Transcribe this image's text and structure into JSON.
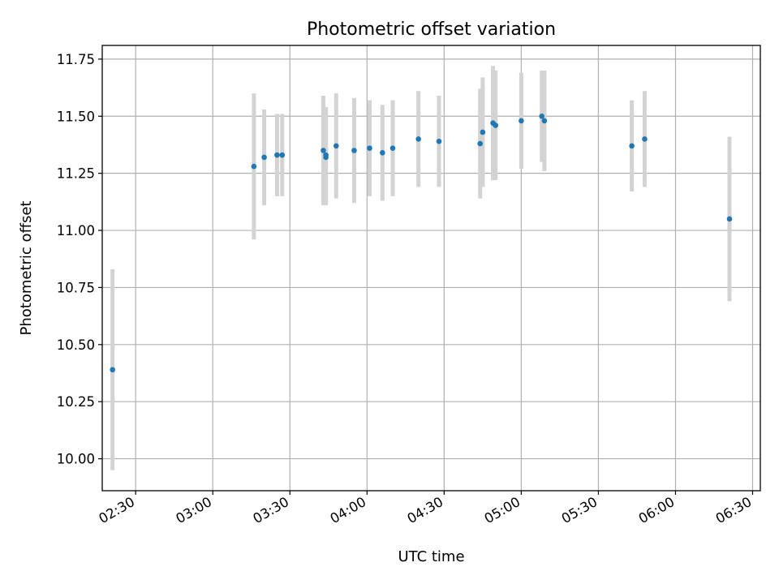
{
  "chart_data": {
    "type": "scatter",
    "title": "Photometric offset variation",
    "xlabel": "UTC time",
    "ylabel": "Photometric offset",
    "x_ticks": [
      "02:30",
      "03:00",
      "03:30",
      "04:00",
      "04:30",
      "05:00",
      "05:30",
      "06:00",
      "06:30"
    ],
    "y_ticks": [
      "10.00",
      "10.25",
      "10.50",
      "10.75",
      "11.00",
      "11.25",
      "11.50",
      "11.75"
    ],
    "xlim": [
      "02:17",
      "06:33"
    ],
    "ylim": [
      9.86,
      11.81
    ],
    "grid": true,
    "point_color": "#1f77b4",
    "errorbar_color": "#d3d3d3",
    "series": [
      {
        "points": [
          {
            "x": "02:21",
            "y": 10.39,
            "err": 0.44
          },
          {
            "x": "03:16",
            "y": 11.28,
            "err": 0.32
          },
          {
            "x": "03:20",
            "y": 11.32,
            "err": 0.21
          },
          {
            "x": "03:25",
            "y": 11.33,
            "err": 0.18
          },
          {
            "x": "03:27",
            "y": 11.33,
            "err": 0.18
          },
          {
            "x": "03:43",
            "y": 11.35,
            "err": 0.24
          },
          {
            "x": "03:44",
            "y": 11.32,
            "err": 0.21
          },
          {
            "x": "03:44",
            "y": 11.33,
            "err": 0.21
          },
          {
            "x": "03:48",
            "y": 11.37,
            "err": 0.23
          },
          {
            "x": "03:55",
            "y": 11.35,
            "err": 0.23
          },
          {
            "x": "04:01",
            "y": 11.36,
            "err": 0.21
          },
          {
            "x": "04:06",
            "y": 11.34,
            "err": 0.21
          },
          {
            "x": "04:10",
            "y": 11.36,
            "err": 0.21
          },
          {
            "x": "04:20",
            "y": 11.4,
            "err": 0.21
          },
          {
            "x": "04:28",
            "y": 11.39,
            "err": 0.2
          },
          {
            "x": "04:44",
            "y": 11.38,
            "err": 0.24
          },
          {
            "x": "04:45",
            "y": 11.43,
            "err": 0.24
          },
          {
            "x": "04:49",
            "y": 11.47,
            "err": 0.25
          },
          {
            "x": "04:50",
            "y": 11.46,
            "err": 0.24
          },
          {
            "x": "05:00",
            "y": 11.48,
            "err": 0.21
          },
          {
            "x": "05:08",
            "y": 11.5,
            "err": 0.2
          },
          {
            "x": "05:09",
            "y": 11.48,
            "err": 0.22
          },
          {
            "x": "05:43",
            "y": 11.37,
            "err": 0.2
          },
          {
            "x": "05:48",
            "y": 11.4,
            "err": 0.21
          },
          {
            "x": "06:21",
            "y": 11.05,
            "err": 0.36
          }
        ]
      }
    ]
  }
}
